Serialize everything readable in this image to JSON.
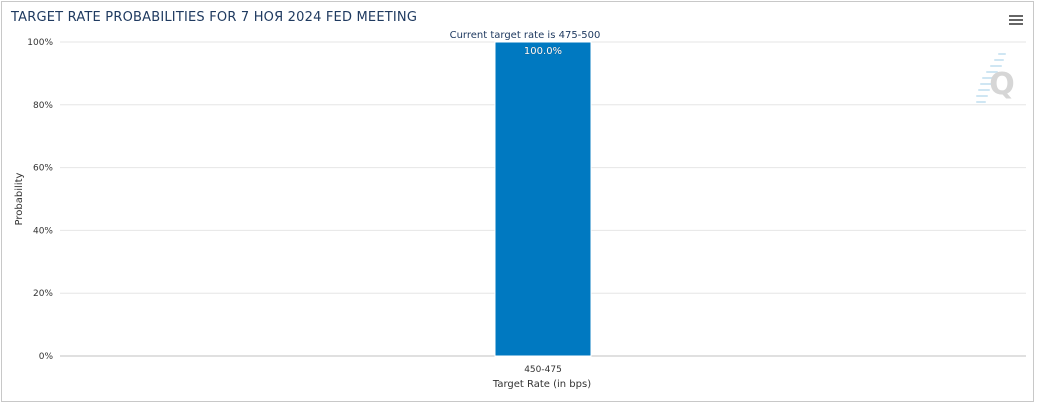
{
  "header": {
    "title": "TARGET RATE PROBABILITIES FOR 7 НОЯ 2024 FED MEETING",
    "menu_icon": "hamburger-menu-icon"
  },
  "watermark": {
    "icon": "quikstrike-logo-icon"
  },
  "colors": {
    "bar": "#0079c1",
    "title": "#1f3a60",
    "grid": "#e6e6e6",
    "axis_text": "#333333"
  },
  "chart_data": {
    "type": "bar",
    "title": "TARGET RATE PROBABILITIES FOR 7 НОЯ 2024 FED MEETING",
    "subtitle": "Current target rate is 475-500",
    "categories": [
      "450-475"
    ],
    "values": [
      100.0
    ],
    "data_labels": [
      "100.0%"
    ],
    "xlabel": "Target Rate (in bps)",
    "ylabel": "Probability",
    "ylim": [
      0,
      100
    ],
    "yticks": [
      0,
      20,
      40,
      60,
      80,
      100
    ],
    "ytick_labels": [
      "0%",
      "20%",
      "40%",
      "60%",
      "80%",
      "100%"
    ],
    "grid": true,
    "legend": "none"
  }
}
